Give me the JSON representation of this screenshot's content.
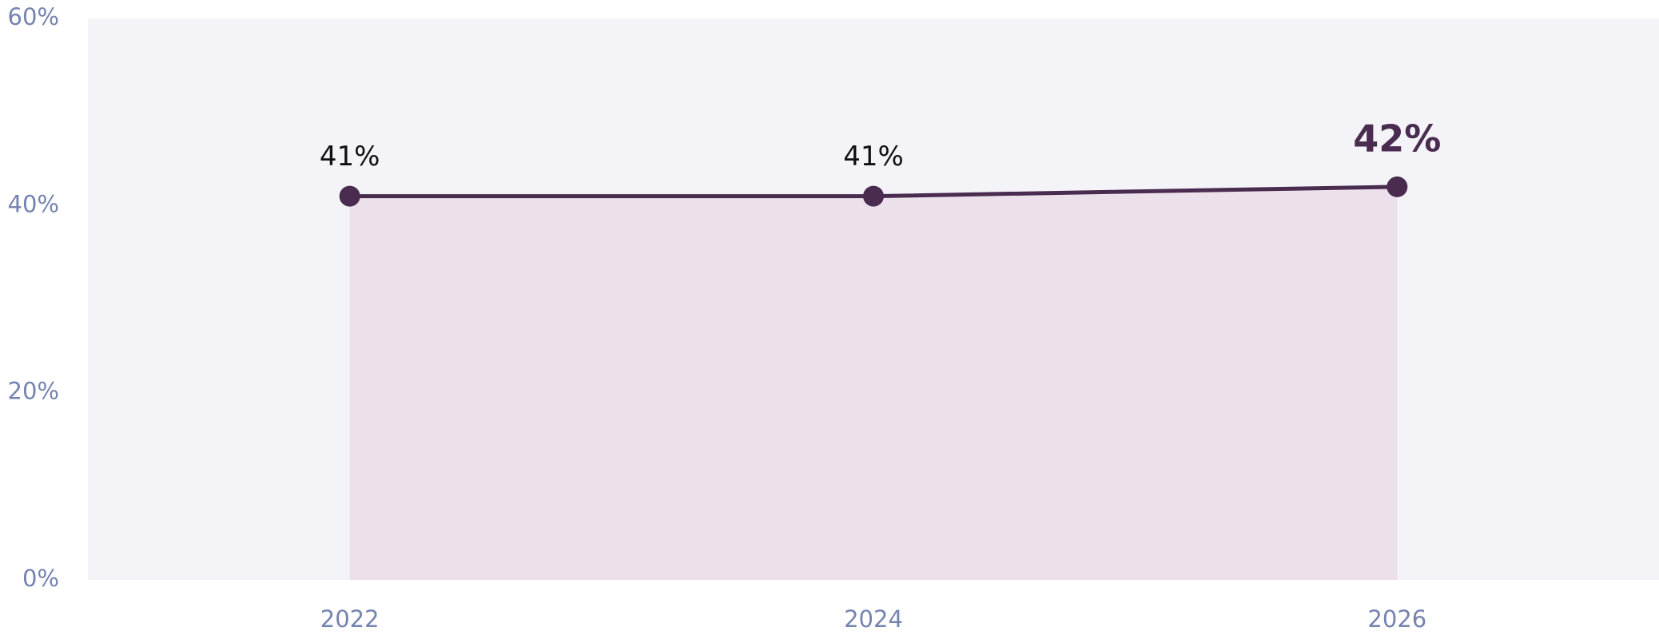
{
  "chart_data": {
    "type": "area",
    "categories": [
      "2022",
      "2024",
      "2026"
    ],
    "values": [
      41,
      41,
      42
    ],
    "value_labels": [
      "41%",
      "41%",
      "42%"
    ],
    "color": "#4a2c50",
    "fill_color": "#ece0ea",
    "background": "#f4f3f8",
    "ylim": [
      0,
      60
    ],
    "yticks": [
      {
        "value": 0,
        "label": "0%"
      },
      {
        "value": 20,
        "label": "20%"
      },
      {
        "value": 40,
        "label": "40%"
      },
      {
        "value": 60,
        "label": "60%"
      }
    ],
    "grid": false
  }
}
